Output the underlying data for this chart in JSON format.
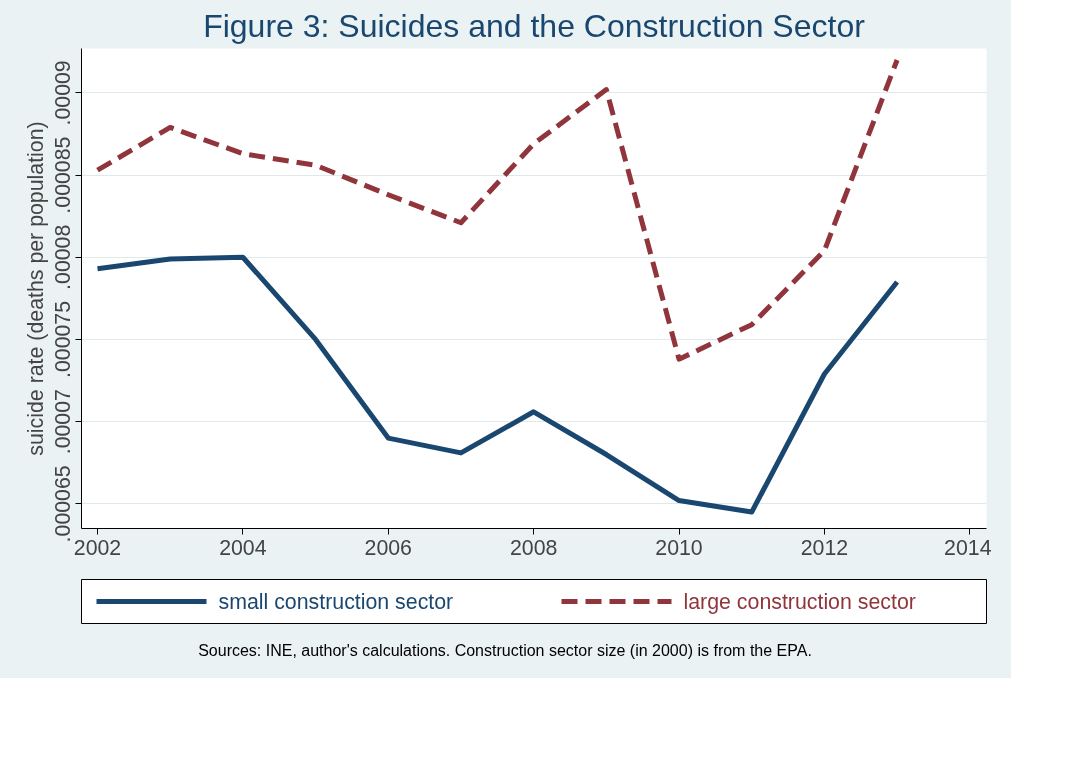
{
  "chart_data": {
    "type": "line",
    "title": "Figure 3: Suicides and the Construction Sector",
    "ylabel": "suicide rate (deaths per population)",
    "x": [
      2002,
      2003,
      2004,
      2005,
      2006,
      2007,
      2008,
      2009,
      2010,
      2011,
      2012,
      2013
    ],
    "series": [
      {
        "name": "small construction sector",
        "color": "#1a476f",
        "line_style": "solid",
        "values": [
          7.93e-05,
          7.99e-05,
          8e-05,
          7.5e-05,
          6.9e-05,
          6.81e-05,
          7.06e-05,
          6.8e-05,
          6.52e-05,
          6.45e-05,
          7.29e-05,
          7.85e-05
        ]
      },
      {
        "name": "large construction sector",
        "color": "#90353b",
        "line_style": "dashed",
        "values": [
          8.53e-05,
          8.79e-05,
          8.63e-05,
          8.56e-05,
          8.38e-05,
          8.21e-05,
          8.69e-05,
          9.02e-05,
          7.38e-05,
          7.59e-05,
          8.04e-05,
          9.2e-05
        ]
      }
    ],
    "xlim": [
      2001.78,
      2014.23
    ],
    "xticks": [
      2002,
      2004,
      2006,
      2008,
      2010,
      2012,
      2014
    ],
    "ylim": [
      6.35e-05,
      9.27e-05
    ],
    "yticks": [
      {
        "value": 6.5e-05,
        "label": ".000065"
      },
      {
        "value": 7e-05,
        "label": ".00007"
      },
      {
        "value": 7.5e-05,
        "label": ".000075"
      },
      {
        "value": 8e-05,
        "label": ".00008"
      },
      {
        "value": 8.5e-05,
        "label": ".000085"
      },
      {
        "value": 9e-05,
        "label": ".00009"
      }
    ],
    "grid": "y",
    "legend": "bottom",
    "marker": "none",
    "annotations": [
      "Sources: INE, author's calculations. Construction sector size (in 2000)  is from the EPA."
    ]
  }
}
